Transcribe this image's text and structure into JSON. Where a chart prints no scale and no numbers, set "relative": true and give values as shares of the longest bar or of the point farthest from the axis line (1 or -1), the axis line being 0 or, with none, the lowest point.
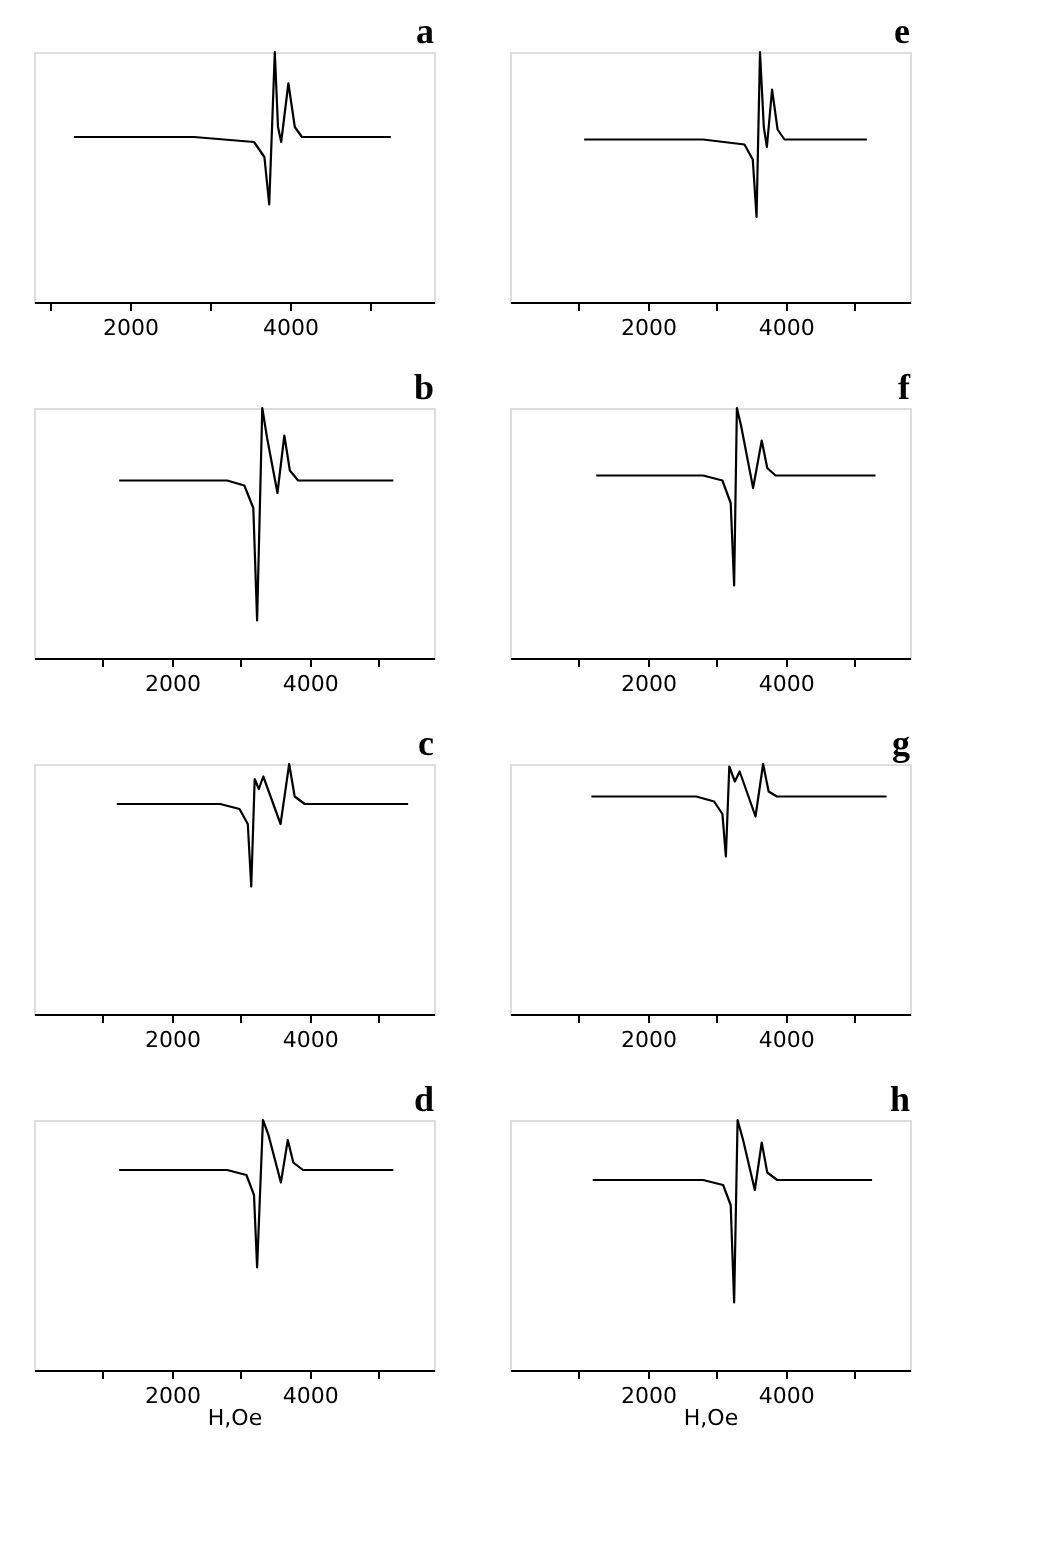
{
  "chart_data": [
    {
      "type": "line",
      "title": "a",
      "relative": true,
      "x": [
        1300,
        2000,
        2800,
        3550,
        3680,
        3740,
        3810,
        3850,
        3890,
        3980,
        4060,
        4150,
        4600,
        5260
      ],
      "xlim": [
        800,
        5800
      ],
      "xticks": [
        {
          "value": 1000,
          "label": null
        },
        2000,
        {
          "value": 3000,
          "label": null
        },
        4000,
        {
          "value": 5000,
          "label": null
        }
      ],
      "series": [
        {
          "color": "#000000",
          "values": [
            0.66,
            0.66,
            0.66,
            0.64,
            0.58,
            0.39,
            1,
            0.7,
            0.64,
            0.875,
            0.7,
            0.66,
            0.66,
            0.66
          ]
        }
      ],
      "grid": false,
      "marker": "none",
      "line_style": "solid"
    },
    {
      "type": "line",
      "title": "b",
      "relative": true,
      "x": [
        1235,
        2000,
        2800,
        3050,
        3180,
        3235,
        3310,
        3380,
        3530,
        3630,
        3710,
        3830,
        4500,
        5210
      ],
      "xlim": [
        0,
        5800
      ],
      "xticks": [
        {
          "value": 1000,
          "label": null
        },
        2000,
        {
          "value": 3000,
          "label": null
        },
        4000,
        {
          "value": 5000,
          "label": null
        }
      ],
      "series": [
        {
          "color": "#000000",
          "values": [
            0.71,
            0.71,
            0.71,
            0.69,
            0.6,
            0.15,
            1,
            0.88,
            0.66,
            0.89,
            0.75,
            0.71,
            0.71,
            0.71
          ]
        }
      ],
      "grid": false,
      "marker": "none",
      "line_style": "solid"
    },
    {
      "type": "line",
      "title": "c",
      "relative": true,
      "x": [
        1200,
        2000,
        2700,
        2980,
        3100,
        3150,
        3200,
        3260,
        3325,
        3575,
        3700,
        3780,
        3925,
        4600,
        5425
      ],
      "xlim": [
        0,
        5800
      ],
      "xticks": [
        {
          "value": 1000,
          "label": null
        },
        2000,
        {
          "value": 3000,
          "label": null
        },
        4000,
        {
          "value": 5000,
          "label": null
        }
      ],
      "series": [
        {
          "color": "#000000",
          "values": [
            0.84,
            0.84,
            0.84,
            0.82,
            0.76,
            0.51,
            0.94,
            0.9,
            0.95,
            0.76,
            1,
            0.87,
            0.84,
            0.84,
            0.84
          ]
        }
      ],
      "grid": false,
      "marker": "none",
      "line_style": "solid"
    },
    {
      "type": "line",
      "title": "d",
      "xlabel": "H,Oe",
      "relative": true,
      "x": [
        1235,
        2000,
        2800,
        3080,
        3190,
        3235,
        3320,
        3400,
        3580,
        3680,
        3760,
        3900,
        4500,
        5210
      ],
      "xlim": [
        0,
        5800
      ],
      "xticks": [
        {
          "value": 1000,
          "label": null
        },
        2000,
        {
          "value": 3000,
          "label": null
        },
        4000,
        {
          "value": 5000,
          "label": null
        }
      ],
      "series": [
        {
          "color": "#000000",
          "values": [
            0.8,
            0.8,
            0.8,
            0.78,
            0.7,
            0.41,
            1,
            0.94,
            0.75,
            0.92,
            0.83,
            0.8,
            0.8,
            0.8
          ]
        }
      ],
      "grid": false,
      "marker": "none",
      "line_style": "solid"
    },
    {
      "type": "line",
      "title": "e",
      "relative": true,
      "x": [
        1075,
        2000,
        2800,
        3400,
        3520,
        3575,
        3625,
        3680,
        3725,
        3800,
        3880,
        3980,
        4500,
        5175
      ],
      "xlim": [
        0,
        5800
      ],
      "xticks": [
        {
          "value": 1000,
          "label": null
        },
        2000,
        {
          "value": 3000,
          "label": null
        },
        4000,
        {
          "value": 5000,
          "label": null
        }
      ],
      "series": [
        {
          "color": "#000000",
          "values": [
            0.65,
            0.65,
            0.65,
            0.63,
            0.57,
            0.34,
            1,
            0.7,
            0.62,
            0.85,
            0.69,
            0.65,
            0.65,
            0.65
          ]
        }
      ],
      "grid": false,
      "marker": "none",
      "line_style": "solid"
    },
    {
      "type": "line",
      "title": "f",
      "relative": true,
      "x": [
        1250,
        2000,
        2800,
        3080,
        3200,
        3250,
        3290,
        3350,
        3525,
        3650,
        3730,
        3850,
        4500,
        5300
      ],
      "xlim": [
        0,
        5800
      ],
      "xticks": [
        {
          "value": 1000,
          "label": null
        },
        2000,
        {
          "value": 3000,
          "label": null
        },
        4000,
        {
          "value": 5000,
          "label": null
        }
      ],
      "series": [
        {
          "color": "#000000",
          "values": [
            0.73,
            0.73,
            0.73,
            0.71,
            0.62,
            0.29,
            1,
            0.93,
            0.68,
            0.87,
            0.76,
            0.73,
            0.73,
            0.73
          ]
        }
      ],
      "grid": false,
      "marker": "none",
      "line_style": "solid"
    },
    {
      "type": "line",
      "title": "g",
      "relative": true,
      "x": [
        1180,
        2000,
        2700,
        2960,
        3080,
        3130,
        3180,
        3260,
        3330,
        3560,
        3670,
        3750,
        3870,
        4600,
        5460
      ],
      "xlim": [
        0,
        5800
      ],
      "xticks": [
        {
          "value": 1000,
          "label": null
        },
        2000,
        {
          "value": 3000,
          "label": null
        },
        4000,
        {
          "value": 5000,
          "label": null
        }
      ],
      "series": [
        {
          "color": "#000000",
          "values": [
            0.87,
            0.87,
            0.87,
            0.85,
            0.8,
            0.63,
            0.99,
            0.93,
            0.97,
            0.79,
            1,
            0.89,
            0.87,
            0.87,
            0.87
          ]
        }
      ],
      "grid": false,
      "marker": "none",
      "line_style": "solid"
    },
    {
      "type": "line",
      "title": "h",
      "xlabel": "H,Oe",
      "relative": true,
      "x": [
        1200,
        2000,
        2800,
        3090,
        3200,
        3250,
        3300,
        3380,
        3550,
        3650,
        3730,
        3875,
        4500,
        5250
      ],
      "xlim": [
        0,
        5800
      ],
      "xticks": [
        {
          "value": 1000,
          "label": null
        },
        2000,
        {
          "value": 3000,
          "label": null
        },
        4000,
        {
          "value": 5000,
          "label": null
        }
      ],
      "series": [
        {
          "color": "#000000",
          "values": [
            0.76,
            0.76,
            0.76,
            0.74,
            0.66,
            0.27,
            1,
            0.92,
            0.72,
            0.91,
            0.79,
            0.76,
            0.76,
            0.76
          ]
        }
      ],
      "grid": false,
      "marker": "none",
      "line_style": "solid"
    }
  ]
}
